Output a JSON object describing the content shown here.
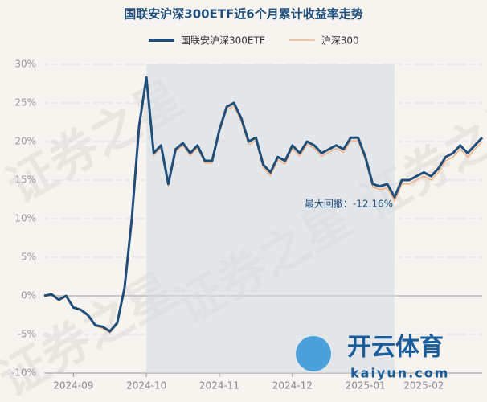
{
  "chart_data": {
    "type": "line",
    "title": "国联安沪深300ETF近6个月累计收益率走势",
    "categories": [
      null,
      null,
      null,
      null,
      "2024-09",
      null,
      null,
      null,
      null,
      null,
      null,
      null,
      null,
      null,
      "2024-10",
      null,
      null,
      null,
      null,
      null,
      null,
      null,
      null,
      null,
      "2024-11",
      null,
      null,
      null,
      null,
      null,
      null,
      null,
      null,
      null,
      "2024-12",
      null,
      null,
      null,
      null,
      null,
      null,
      null,
      null,
      null,
      "2025-01",
      null,
      null,
      null,
      null,
      null,
      null,
      null,
      "2025-02",
      null,
      null,
      null,
      null,
      null,
      null,
      null,
      null
    ],
    "series": [
      {
        "name": "国联安沪深300ETF",
        "color": "#1f4e79",
        "values": [
          0,
          0.2,
          -0.5,
          0,
          -1.5,
          -1.8,
          -2.5,
          -3.8,
          -4.0,
          -4.6,
          -3.5,
          1.0,
          10,
          22,
          28.3,
          18.5,
          19.5,
          14.5,
          19,
          19.8,
          18.5,
          19.5,
          17.5,
          17.5,
          21.5,
          24.5,
          25,
          23,
          20,
          20.5,
          17,
          16,
          18,
          17.5,
          19.5,
          18.5,
          20,
          19.5,
          18.5,
          19,
          19.5,
          19,
          20.5,
          20.5,
          18,
          14.5,
          14.2,
          14.5,
          12.8,
          15,
          15,
          15.5,
          16,
          15.5,
          16.5,
          18,
          18.5,
          19.5,
          18.5,
          19.5,
          20.5
        ]
      },
      {
        "name": "沪深300",
        "color": "#f4b183",
        "values": [
          0,
          0.1,
          -0.6,
          -0.1,
          -1.6,
          -1.9,
          -2.6,
          -3.9,
          -4.2,
          -4.8,
          -3.7,
          0.8,
          9.8,
          21.8,
          28.0,
          18.2,
          19.2,
          14.2,
          18.7,
          19.5,
          18.2,
          19.2,
          17.2,
          17.2,
          21.2,
          24.1,
          24.6,
          22.6,
          19.6,
          20.1,
          16.6,
          15.6,
          17.6,
          17.1,
          19.1,
          18.1,
          19.6,
          19.1,
          18.1,
          18.6,
          19.1,
          18.6,
          20.1,
          20.1,
          17.6,
          14.1,
          13.8,
          14.0,
          12.3,
          14.5,
          14.5,
          15.0,
          15.5,
          15.0,
          16.0,
          17.5,
          18.0,
          19.0,
          18.0,
          19.0,
          20.0
        ]
      }
    ],
    "ylim": [
      -10,
      30
    ],
    "yticks": [
      {
        "value": -10,
        "label": "-10%"
      },
      {
        "value": -5,
        "label": "-5%"
      },
      {
        "value": 0,
        "label": "0%"
      },
      {
        "value": 5,
        "label": "5%"
      },
      {
        "value": 10,
        "label": "10%"
      },
      {
        "value": 15,
        "label": "15%"
      },
      {
        "value": 20,
        "label": "20%"
      },
      {
        "value": 25,
        "label": "25%"
      },
      {
        "value": 30,
        "label": "30%"
      }
    ],
    "grid": true,
    "legend": "top",
    "annotation": "最大回撤：-12.16%"
  },
  "watermark": "证券之星",
  "logo": {
    "name": "开云体育",
    "url": "kaiyun.com"
  }
}
